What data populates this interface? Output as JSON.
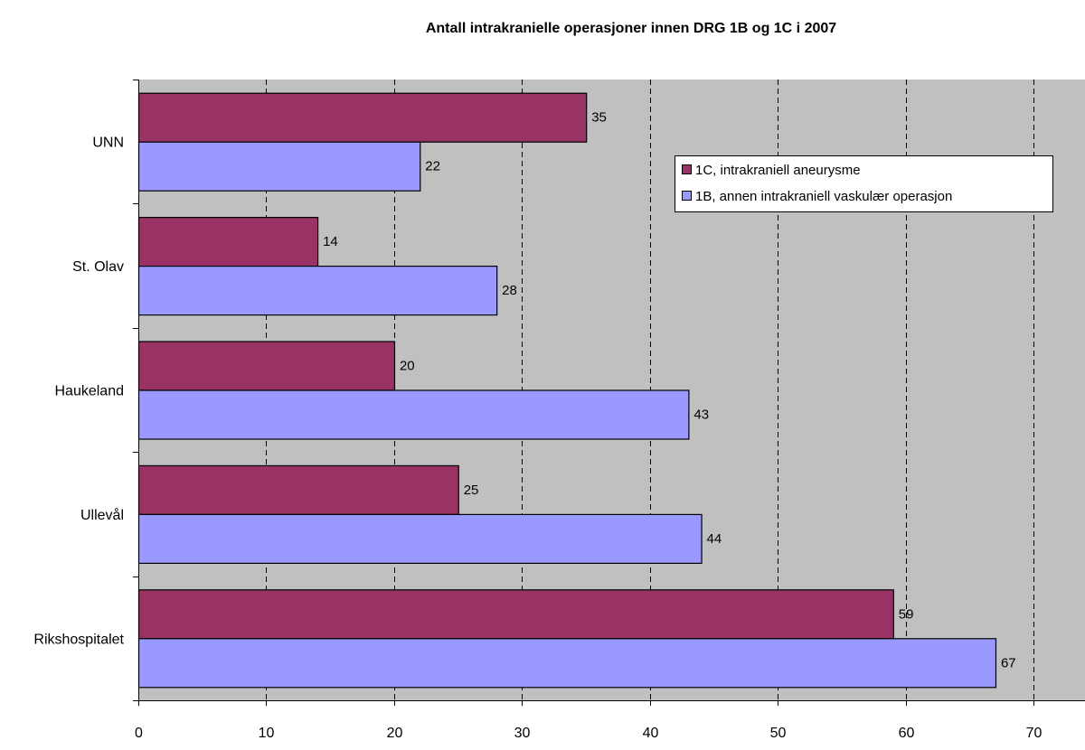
{
  "chart_data": {
    "type": "bar",
    "orientation": "horizontal",
    "title": "Antall intrakranielle operasjoner innen DRG 1B og 1C i 2007",
    "xlabel": "",
    "ylabel": "",
    "categories": [
      "UNN",
      "St. Olav",
      "Haukeland",
      "Ullevål",
      "Rikshospitalet"
    ],
    "series": [
      {
        "name": "1C, intrakraniell aneurysme",
        "color": "#993366",
        "values": [
          35,
          14,
          20,
          25,
          59
        ]
      },
      {
        "name": "1B, annen intrakraniell vaskulær operasjon",
        "color": "#9999FF",
        "values": [
          22,
          28,
          43,
          44,
          67
        ]
      }
    ],
    "xlim": [
      0,
      74
    ],
    "x_ticks": [
      0,
      10,
      20,
      30,
      40,
      50,
      60,
      70
    ],
    "grid": "vertical-dashed",
    "plot_background": "#C0C0C0",
    "data_labels": true,
    "legend": "top-right"
  }
}
